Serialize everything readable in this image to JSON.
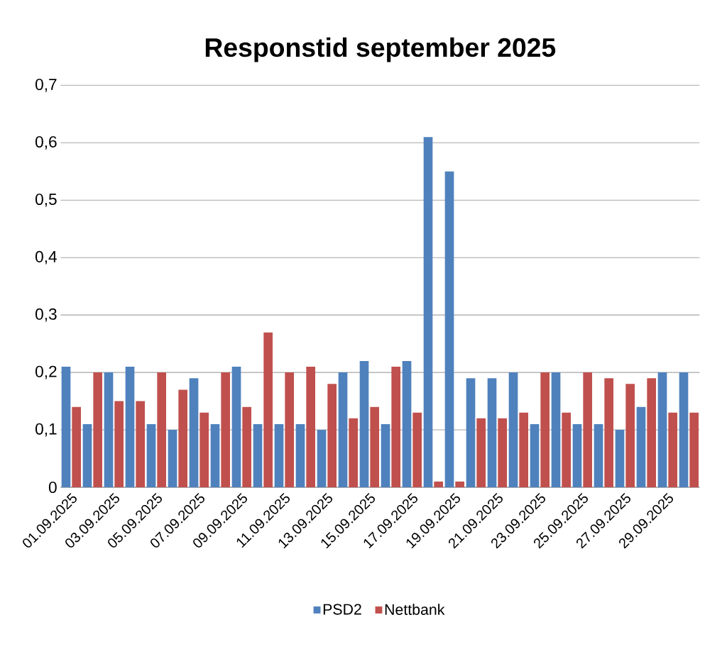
{
  "chart_data": {
    "type": "bar",
    "title": "Responstid september 2025",
    "categories": [
      "01.09.2025",
      null,
      "03.09.2025",
      null,
      "05.09.2025",
      null,
      "07.09.2025",
      null,
      "09.09.2025",
      null,
      "11.09.2025",
      null,
      "13.09.2025",
      null,
      "15.09.2025",
      null,
      "17.09.2025",
      null,
      "19.09.2025",
      null,
      "21.09.2025",
      null,
      "23.09.2025",
      null,
      "25.09.2025",
      null,
      "27.09.2025",
      null,
      "29.09.2025",
      null
    ],
    "series": [
      {
        "name": "PSD2",
        "color": "#4f81bd",
        "values": [
          0.21,
          0.11,
          0.2,
          0.21,
          0.11,
          0.1,
          0.19,
          0.11,
          0.21,
          0.11,
          0.11,
          0.11,
          0.1,
          0.2,
          0.22,
          0.11,
          0.22,
          0.61,
          0.55,
          0.19,
          0.19,
          0.2,
          0.11,
          0.2,
          0.11,
          0.11,
          0.1,
          0.14,
          0.2,
          0.2
        ]
      },
      {
        "name": "Nettbank",
        "color": "#c0504d",
        "values": [
          0.14,
          0.2,
          0.15,
          0.15,
          0.2,
          0.17,
          0.13,
          0.2,
          0.14,
          0.27,
          0.2,
          0.21,
          0.18,
          0.12,
          0.14,
          0.21,
          0.13,
          0.01,
          0.01,
          0.12,
          0.12,
          0.13,
          0.2,
          0.13,
          0.2,
          0.19,
          0.18,
          0.19,
          0.13,
          0.13
        ]
      }
    ],
    "ylim": [
      0,
      0.7
    ],
    "yticks": [
      {
        "value": 0,
        "label": "0"
      },
      {
        "value": 0.1,
        "label": "0,1"
      },
      {
        "value": 0.2,
        "label": "0,2"
      },
      {
        "value": 0.3,
        "label": "0,3"
      },
      {
        "value": 0.4,
        "label": "0,4"
      },
      {
        "value": 0.5,
        "label": "0,5"
      },
      {
        "value": 0.6,
        "label": "0,6"
      },
      {
        "value": 0.7,
        "label": "0,7"
      }
    ],
    "grid": "y",
    "legend": "bottom"
  }
}
